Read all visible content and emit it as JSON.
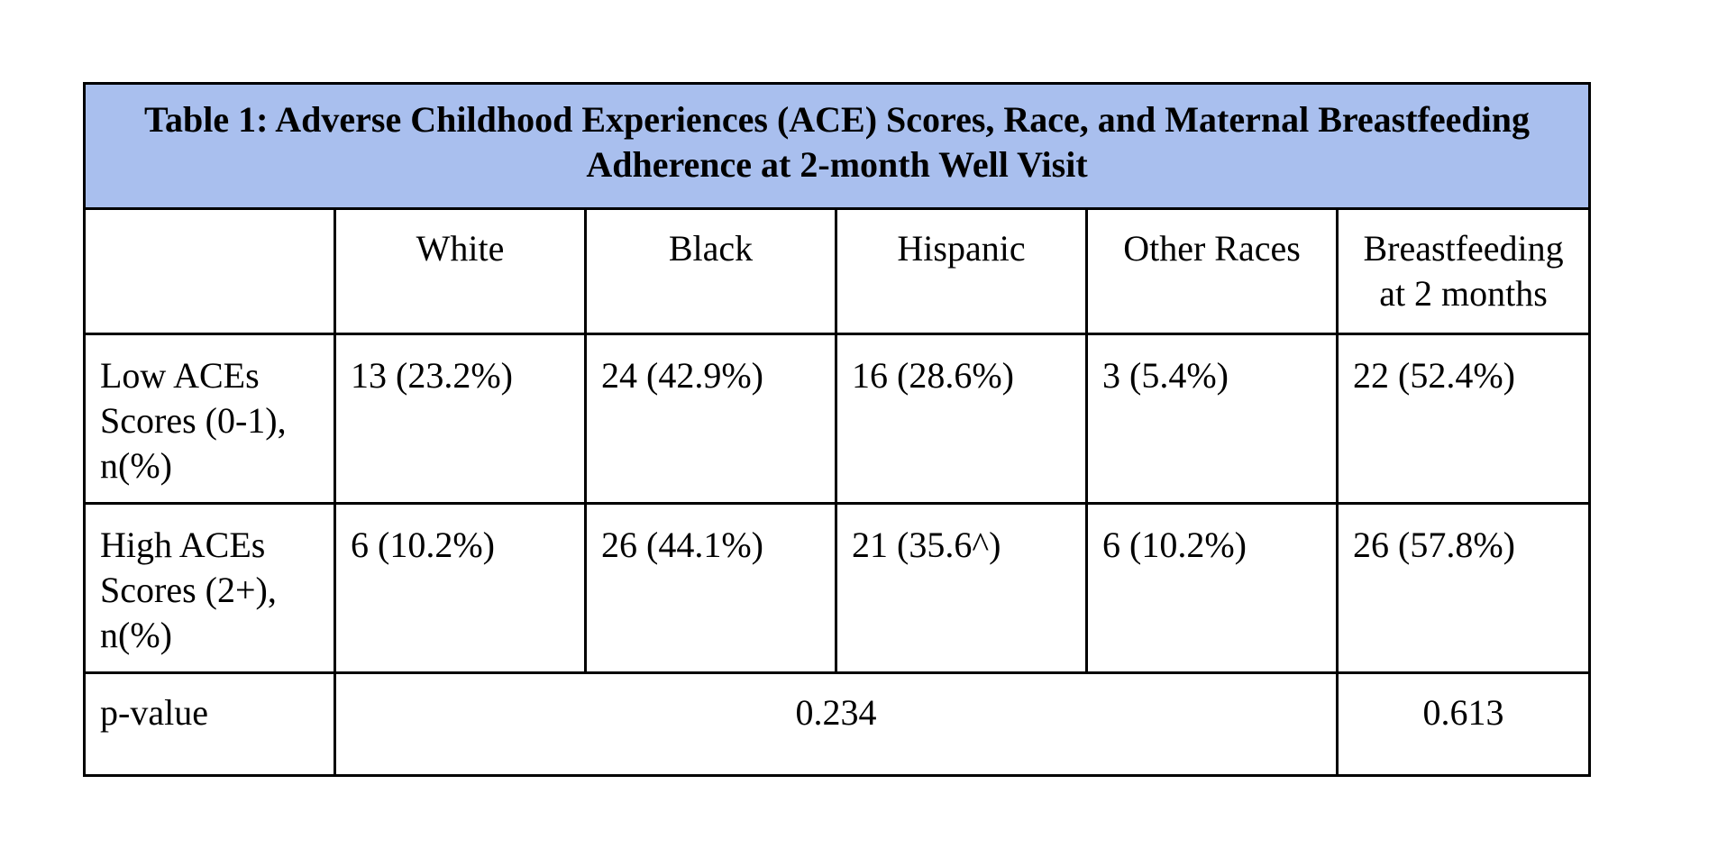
{
  "table": {
    "title": "Table 1: Adverse Childhood Experiences (ACE) Scores, Race, and Maternal Breastfeeding Adherence at 2-month Well Visit",
    "columns": [
      "",
      "White",
      "Black",
      "Hispanic",
      "Other Races",
      "Breastfeeding at 2 months"
    ],
    "rows": [
      {
        "label": "Low ACEs Scores (0-1), n(%)",
        "cells": [
          "13 (23.2%)",
          "24 (42.9%)",
          "16 (28.6%)",
          "3 (5.4%)",
          "22 (52.4%)"
        ]
      },
      {
        "label": "High ACEs Scores (2+), n(%)",
        "cells": [
          "6 (10.2%)",
          "26 (44.1%)",
          "21 (35.6^)",
          "6 (10.2%)",
          "26 (57.8%)"
        ]
      }
    ],
    "pvalue": {
      "label": "p-value",
      "race": "0.234",
      "breastfeeding": "0.613"
    },
    "colors": {
      "title_background": "#a9bfee",
      "border": "#000000"
    }
  }
}
